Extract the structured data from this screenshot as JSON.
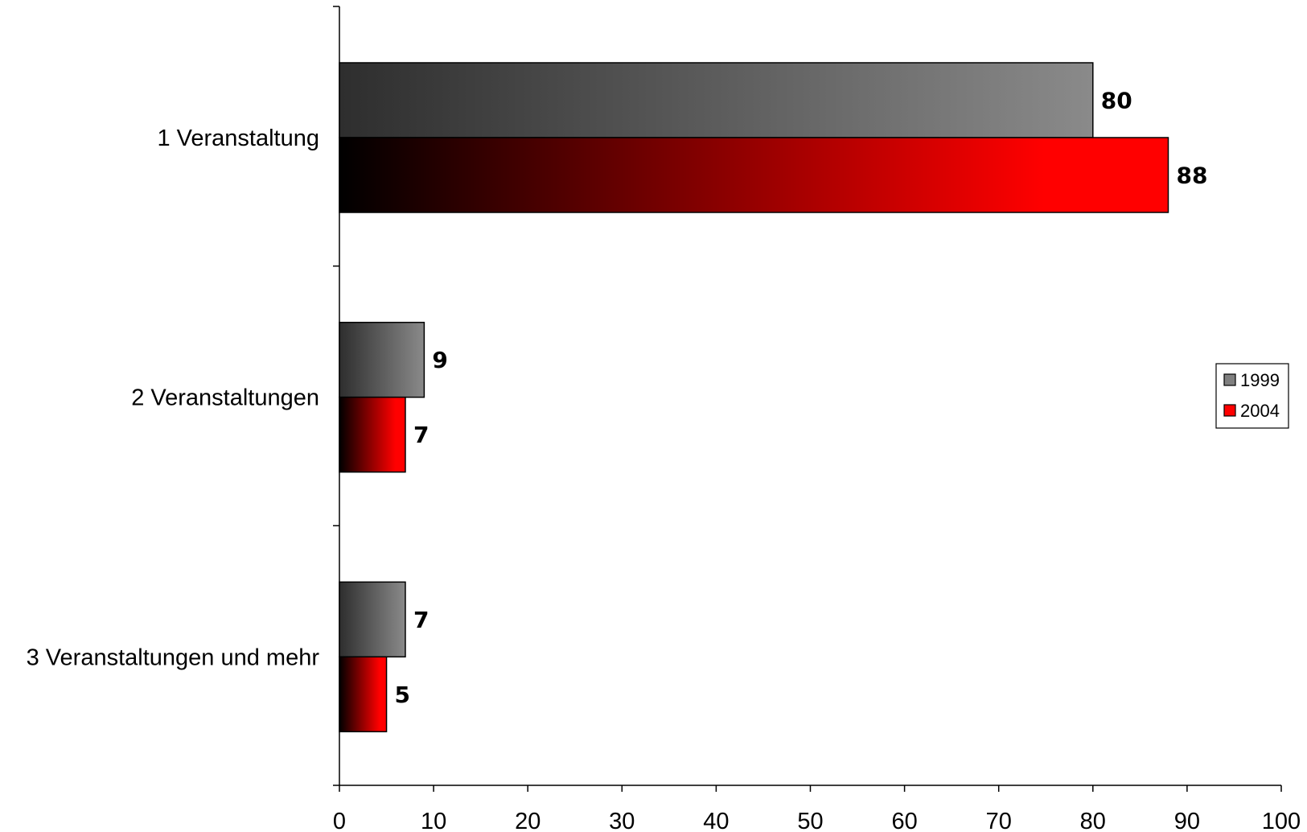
{
  "chart_data": {
    "type": "bar",
    "orientation": "horizontal",
    "title": "",
    "xlabel": "",
    "ylabel": "",
    "categories": [
      "1 Veranstaltung",
      "2 Veranstaltungen",
      "3 Veranstaltungen und mehr"
    ],
    "series": [
      {
        "name": "1999",
        "values": [
          80,
          9,
          7
        ],
        "color": "#808080"
      },
      {
        "name": "2004",
        "values": [
          88,
          7,
          5
        ],
        "color": "#ff0000"
      }
    ],
    "xlim": [
      0,
      100
    ],
    "xticks": [
      0,
      10,
      20,
      30,
      40,
      50,
      60,
      70,
      80,
      90,
      100
    ],
    "grid": false,
    "legend": {
      "position": "right",
      "entries": [
        "1999",
        "2004"
      ]
    },
    "data_labels": true
  }
}
